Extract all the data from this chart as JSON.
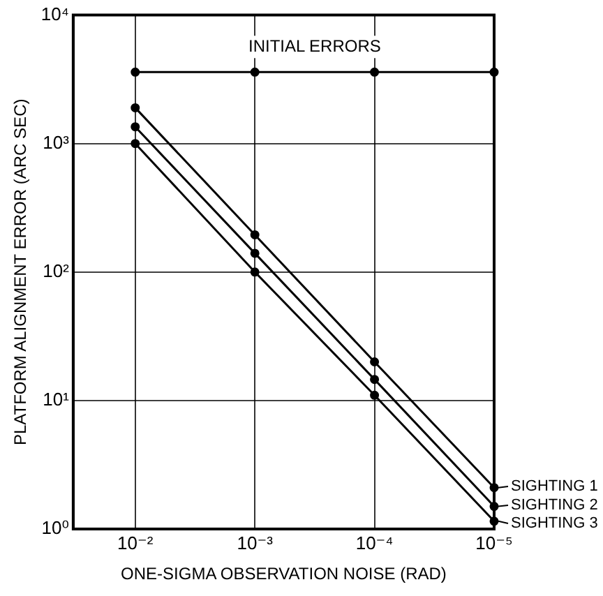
{
  "chart_data": {
    "type": "line",
    "xlabel": "ONE-SIGMA OBSERVATION NOISE (RAD)",
    "ylabel": "PLATFORM ALIGNMENT ERROR (ARC SEC)",
    "x": [
      0.01,
      0.001,
      0.0001,
      1e-05
    ],
    "series": [
      {
        "name": "INITIAL ERRORS",
        "color": "#000000",
        "values": [
          3600,
          3600,
          3600,
          3600
        ]
      },
      {
        "name": "SIGHTING 1",
        "color": "#000000",
        "values": [
          1900,
          195,
          20,
          2.1
        ]
      },
      {
        "name": "SIGHTING 2",
        "color": "#000000",
        "values": [
          1350,
          140,
          14.6,
          1.5
        ]
      },
      {
        "name": "SIGHTING 3",
        "color": "#000000",
        "values": [
          1000,
          100,
          11,
          1.15
        ]
      }
    ],
    "log": "xy",
    "xlim": [
      0.033,
      1e-05
    ],
    "ylim": [
      1,
      10000
    ],
    "xticks": [
      {
        "value": 0.01,
        "label": "10⁻²"
      },
      {
        "value": 0.001,
        "label": "10⁻³"
      },
      {
        "value": 0.0001,
        "label": "10⁻⁴"
      },
      {
        "value": 1e-05,
        "label": "10⁻⁵"
      }
    ],
    "yticks": [
      {
        "value": 1,
        "label": "10⁰"
      },
      {
        "value": 10,
        "label": "10¹"
      },
      {
        "value": 100,
        "label": "10²"
      },
      {
        "value": 1000,
        "label": "10³"
      },
      {
        "value": 10000,
        "label": "10⁴"
      }
    ],
    "grid": true,
    "legend": "right",
    "marker": "circle",
    "line_style": "solid"
  }
}
